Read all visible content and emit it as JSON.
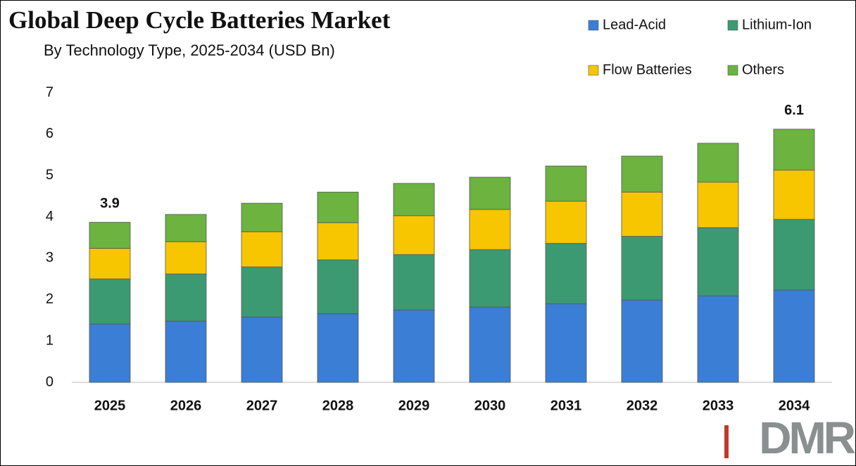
{
  "chart_data": {
    "type": "stacked-bar",
    "title": "Global Deep Cycle Batteries Market",
    "subtitle": "By Technology Type, 2025-2034 (USD Bn)",
    "categories": [
      "2025",
      "2026",
      "2027",
      "2028",
      "2029",
      "2030",
      "2031",
      "2032",
      "2033",
      "2034"
    ],
    "series": [
      {
        "name": "Lead-Acid",
        "color": "#3a7fd5",
        "values": [
          1.41,
          1.48,
          1.58,
          1.66,
          1.75,
          1.82,
          1.9,
          1.99,
          2.09,
          2.23
        ]
      },
      {
        "name": "Lithium-Ion",
        "color": "#3c9a73",
        "values": [
          1.09,
          1.14,
          1.21,
          1.3,
          1.34,
          1.39,
          1.46,
          1.54,
          1.65,
          1.71
        ]
      },
      {
        "name": "Flow Batteries",
        "color": "#f7c600",
        "values": [
          0.74,
          0.78,
          0.85,
          0.9,
          0.94,
          0.97,
          1.02,
          1.07,
          1.1,
          1.19
        ]
      },
      {
        "name": "Others",
        "color": "#6cb33f",
        "values": [
          0.63,
          0.66,
          0.69,
          0.74,
          0.78,
          0.78,
          0.85,
          0.87,
          0.94,
          0.99
        ]
      }
    ],
    "total_labels": [
      3.9,
      null,
      null,
      null,
      null,
      null,
      null,
      null,
      null,
      6.1
    ],
    "ylim": [
      0,
      7
    ],
    "yticks": [
      0,
      1,
      2,
      3,
      4,
      5,
      6,
      7
    ],
    "grid": false,
    "legend": "top-right",
    "logo": "DMR"
  }
}
